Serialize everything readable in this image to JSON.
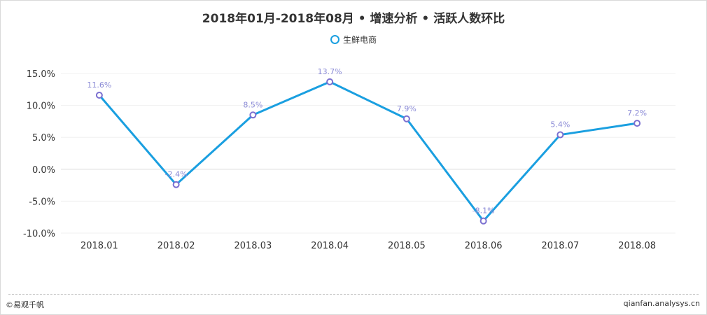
{
  "chart_data": {
    "type": "line",
    "title": "2018年01月-2018年08月 • 增速分析 • 活跃人数环比",
    "categories": [
      "2018.01",
      "2018.02",
      "2018.03",
      "2018.04",
      "2018.05",
      "2018.06",
      "2018.07",
      "2018.08"
    ],
    "series": [
      {
        "name": "生鲜电商",
        "values": [
          11.6,
          -2.4,
          8.5,
          13.7,
          7.9,
          -8.1,
          5.4,
          7.2
        ],
        "labels": [
          "11.6%",
          "-2.4%",
          "8.5%",
          "13.7%",
          "7.9%",
          "-8.1%",
          "5.4%",
          "7.2%"
        ]
      }
    ],
    "yticks": [
      15,
      10,
      5,
      0,
      -5,
      -10
    ],
    "ytick_labels": [
      "15.0%",
      "10.0%",
      "5.0%",
      "0.0%",
      "-5.0%",
      "-10.0%"
    ],
    "ylim": [
      -10,
      15
    ],
    "grid": true,
    "legend_position": "top-center",
    "colors": {
      "line": "#1a9fe0",
      "marker_stroke": "#7b6fd0",
      "data_label": "#8a8ad6"
    }
  },
  "footer": {
    "left": "©易观千帆",
    "right": "qianfan.analysys.cn"
  }
}
